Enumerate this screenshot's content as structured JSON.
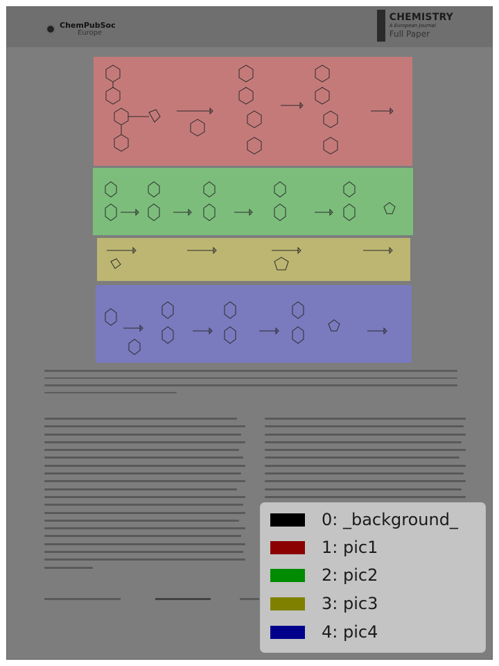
{
  "header": {
    "publisher_line1": "ChemPubSoc",
    "publisher_line2": "Europe",
    "journal_title": "CHEMISTRY",
    "journal_subtitle": "A European Journal",
    "article_type": "Full Paper"
  },
  "legend": {
    "items": [
      {
        "label": "0: _background_",
        "color": "#000000"
      },
      {
        "label": "1: pic1",
        "color": "#8b0000"
      },
      {
        "label": "2: pic2",
        "color": "#008b00"
      },
      {
        "label": "3: pic3",
        "color": "#808000"
      },
      {
        "label": "4: pic4",
        "color": "#00008b"
      }
    ]
  },
  "regions": {
    "pic1_color": "#c57a7a",
    "pic2_color": "#7cbd7c",
    "pic3_color": "#bcb672",
    "pic4_color": "#7a7abf"
  }
}
